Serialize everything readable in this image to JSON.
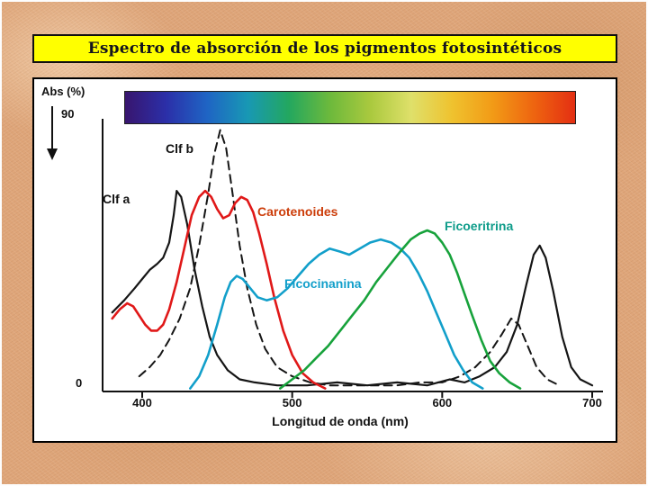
{
  "title": {
    "text": "Espectro de absorción de los pigmentos fotosintéticos"
  },
  "colors": {
    "slide_bg": "#dfa67a",
    "title_bg": "#ffff00",
    "title_text": "#14141e",
    "panel_bg": "#ffffff",
    "panel_border": "#000000"
  },
  "spectrum_bar": {
    "stops": [
      "#38156e",
      "#2b2fa8",
      "#1f64c4",
      "#1898b4",
      "#23a75f",
      "#6cb93c",
      "#aac93e",
      "#dfe06a",
      "#efc22e",
      "#f29a16",
      "#ee6410",
      "#e42f12"
    ]
  },
  "chart_data": {
    "type": "line",
    "title": "Espectro de absorción de los pigmentos fotosintéticos",
    "xlabel": "Longitud de onda (nm)",
    "ylabel": "Abs (%)",
    "xlim": [
      380,
      710
    ],
    "ylim": [
      0,
      100
    ],
    "x_ticks": [
      400,
      500,
      600,
      700
    ],
    "y_tick_top": "90",
    "y_tick_bottom": "0",
    "grid": false,
    "legend_position": "inline-labels",
    "series": [
      {
        "name": "clorofila-b",
        "label": "Clf b",
        "color": "#151515",
        "label_color": "#111111",
        "dashed": true,
        "width": 2,
        "points": [
          [
            398,
            5
          ],
          [
            405,
            8
          ],
          [
            412,
            12
          ],
          [
            418,
            17
          ],
          [
            425,
            24
          ],
          [
            432,
            34
          ],
          [
            438,
            48
          ],
          [
            444,
            65
          ],
          [
            448,
            78
          ],
          [
            452,
            86
          ],
          [
            456,
            80
          ],
          [
            460,
            66
          ],
          [
            465,
            48
          ],
          [
            470,
            34
          ],
          [
            476,
            22
          ],
          [
            482,
            14
          ],
          [
            490,
            8
          ],
          [
            500,
            5
          ],
          [
            512,
            3
          ],
          [
            525,
            2
          ],
          [
            540,
            2
          ],
          [
            555,
            2
          ],
          [
            570,
            2
          ],
          [
            585,
            3
          ],
          [
            600,
            3
          ],
          [
            612,
            5
          ],
          [
            622,
            8
          ],
          [
            632,
            13
          ],
          [
            640,
            19
          ],
          [
            646,
            24
          ],
          [
            651,
            22
          ],
          [
            657,
            15
          ],
          [
            663,
            8
          ],
          [
            670,
            4
          ],
          [
            678,
            2
          ]
        ]
      },
      {
        "name": "clorofila-a",
        "label": "Clf a",
        "color": "#151515",
        "label_color": "#111111",
        "dashed": false,
        "width": 2.2,
        "points": [
          [
            380,
            26
          ],
          [
            388,
            30
          ],
          [
            395,
            34
          ],
          [
            400,
            37
          ],
          [
            405,
            40
          ],
          [
            410,
            42
          ],
          [
            414,
            44
          ],
          [
            418,
            49
          ],
          [
            421,
            58
          ],
          [
            423,
            66
          ],
          [
            426,
            64
          ],
          [
            430,
            55
          ],
          [
            435,
            40
          ],
          [
            440,
            28
          ],
          [
            445,
            18
          ],
          [
            450,
            12
          ],
          [
            457,
            7
          ],
          [
            465,
            4
          ],
          [
            475,
            3
          ],
          [
            490,
            2
          ],
          [
            510,
            2
          ],
          [
            530,
            3
          ],
          [
            550,
            2
          ],
          [
            570,
            3
          ],
          [
            590,
            2
          ],
          [
            605,
            4
          ],
          [
            615,
            3
          ],
          [
            625,
            5
          ],
          [
            635,
            8
          ],
          [
            643,
            13
          ],
          [
            650,
            22
          ],
          [
            656,
            35
          ],
          [
            661,
            45
          ],
          [
            665,
            48
          ],
          [
            669,
            44
          ],
          [
            674,
            33
          ],
          [
            680,
            18
          ],
          [
            686,
            8
          ],
          [
            692,
            4
          ],
          [
            700,
            2
          ]
        ]
      },
      {
        "name": "carotenoides",
        "label": "Carotenoides",
        "color": "#e01818",
        "label_color": "#cc3d0a",
        "dashed": false,
        "width": 2.6,
        "points": [
          [
            380,
            24
          ],
          [
            385,
            27
          ],
          [
            390,
            29
          ],
          [
            394,
            28
          ],
          [
            398,
            25
          ],
          [
            402,
            22
          ],
          [
            406,
            20
          ],
          [
            410,
            20
          ],
          [
            414,
            22
          ],
          [
            418,
            27
          ],
          [
            423,
            36
          ],
          [
            428,
            47
          ],
          [
            433,
            58
          ],
          [
            438,
            64
          ],
          [
            442,
            66
          ],
          [
            446,
            64
          ],
          [
            450,
            60
          ],
          [
            454,
            57
          ],
          [
            458,
            58
          ],
          [
            462,
            62
          ],
          [
            466,
            64
          ],
          [
            470,
            63
          ],
          [
            474,
            59
          ],
          [
            478,
            52
          ],
          [
            483,
            42
          ],
          [
            488,
            31
          ],
          [
            494,
            20
          ],
          [
            500,
            12
          ],
          [
            507,
            6
          ],
          [
            514,
            3
          ],
          [
            522,
            1
          ]
        ]
      },
      {
        "name": "ficocianina",
        "label": "Ficocinanina",
        "color": "#129fca",
        "label_color": "#129fca",
        "dashed": false,
        "width": 2.6,
        "points": [
          [
            432,
            1
          ],
          [
            438,
            5
          ],
          [
            444,
            12
          ],
          [
            450,
            22
          ],
          [
            455,
            31
          ],
          [
            459,
            36
          ],
          [
            463,
            38
          ],
          [
            467,
            37
          ],
          [
            472,
            34
          ],
          [
            477,
            31
          ],
          [
            483,
            30
          ],
          [
            490,
            31
          ],
          [
            497,
            34
          ],
          [
            504,
            38
          ],
          [
            511,
            42
          ],
          [
            518,
            45
          ],
          [
            525,
            47
          ],
          [
            532,
            46
          ],
          [
            538,
            45
          ],
          [
            545,
            47
          ],
          [
            552,
            49
          ],
          [
            559,
            50
          ],
          [
            566,
            49
          ],
          [
            572,
            47
          ],
          [
            578,
            44
          ],
          [
            584,
            39
          ],
          [
            590,
            33
          ],
          [
            596,
            26
          ],
          [
            602,
            19
          ],
          [
            608,
            12
          ],
          [
            614,
            7
          ],
          [
            620,
            3
          ],
          [
            627,
            1
          ]
        ]
      },
      {
        "name": "ficoeritrina",
        "label": "Ficoeritrina",
        "color": "#17a23b",
        "label_color": "#0e9c8a",
        "dashed": false,
        "width": 2.6,
        "points": [
          [
            492,
            1
          ],
          [
            500,
            4
          ],
          [
            508,
            7
          ],
          [
            516,
            11
          ],
          [
            524,
            15
          ],
          [
            532,
            20
          ],
          [
            540,
            25
          ],
          [
            548,
            30
          ],
          [
            556,
            36
          ],
          [
            564,
            41
          ],
          [
            572,
            46
          ],
          [
            579,
            50
          ],
          [
            585,
            52
          ],
          [
            590,
            53
          ],
          [
            595,
            52
          ],
          [
            600,
            49
          ],
          [
            605,
            45
          ],
          [
            610,
            39
          ],
          [
            615,
            32
          ],
          [
            620,
            25
          ],
          [
            626,
            17
          ],
          [
            632,
            10
          ],
          [
            638,
            6
          ],
          [
            645,
            3
          ],
          [
            652,
            1
          ]
        ]
      }
    ]
  }
}
